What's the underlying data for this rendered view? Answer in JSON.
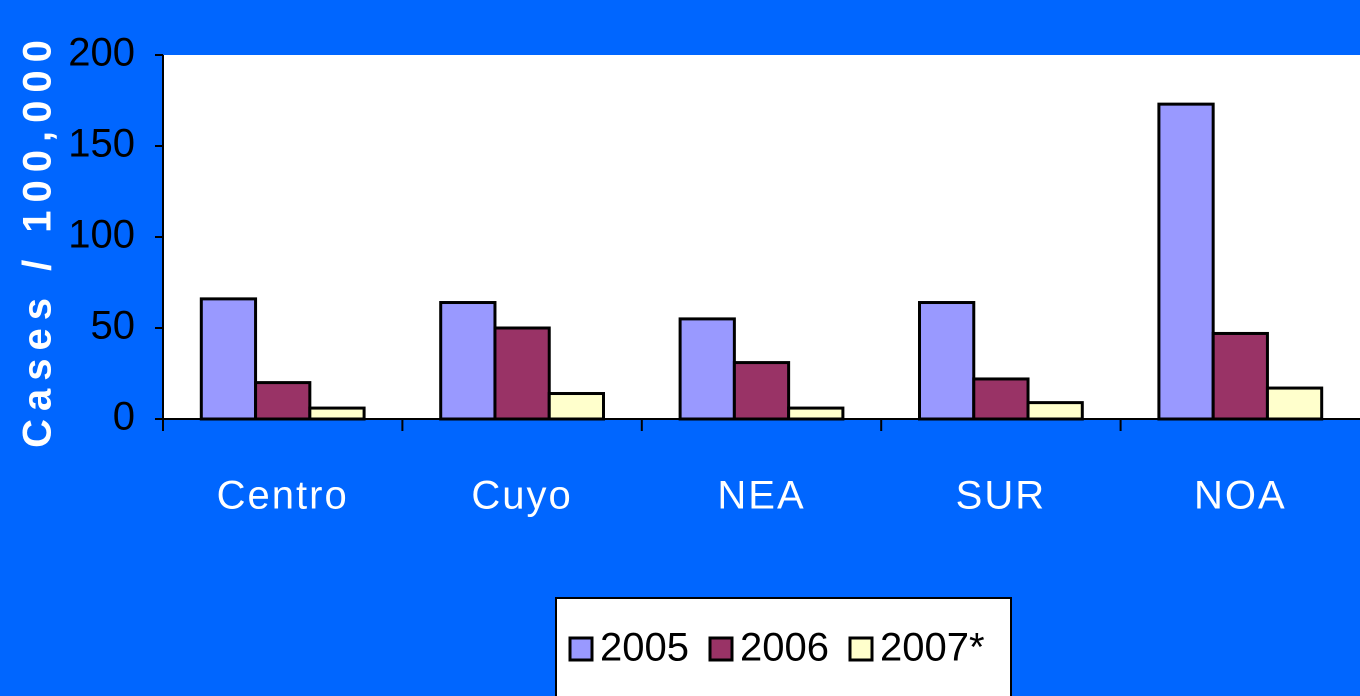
{
  "chart_data": {
    "type": "bar",
    "y_axis_label": "Cases / 100,000",
    "categories": [
      "Centro",
      "Cuyo",
      "NEA",
      "SUR",
      "NOA"
    ],
    "series": [
      {
        "name": "2005",
        "color": "#9999ff",
        "values": [
          66,
          64,
          55,
          64,
          173
        ]
      },
      {
        "name": "2006",
        "color": "#993366",
        "values": [
          20,
          50,
          31,
          22,
          47
        ]
      },
      {
        "name": "2007*",
        "color": "#ffffcc",
        "values": [
          6,
          14,
          6,
          9,
          17
        ]
      }
    ],
    "ylim": [
      0,
      200
    ],
    "yticks": [
      0,
      50,
      100,
      150,
      200
    ],
    "legend": "bottom"
  }
}
